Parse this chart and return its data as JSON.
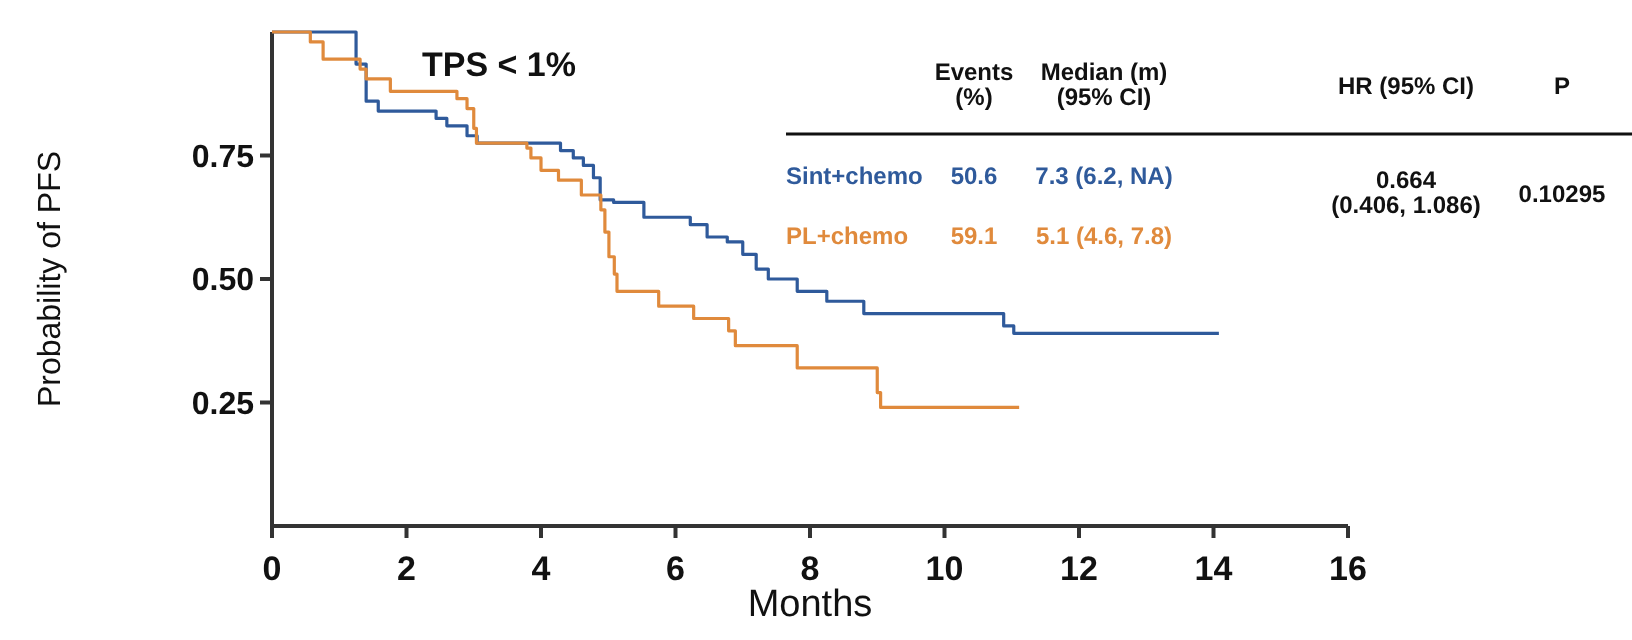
{
  "chart_data": {
    "type": "step",
    "title": "TPS < 1%",
    "xlabel": "Months",
    "ylabel": "Probability of PFS",
    "xlim": [
      0,
      16
    ],
    "xticks": [
      0,
      2,
      4,
      6,
      8,
      10,
      12,
      14,
      16
    ],
    "ylim": [
      0,
      1
    ],
    "yticks": [
      {
        "value": 0.25,
        "label": "0.25"
      },
      {
        "value": 0.5,
        "label": "0.50"
      },
      {
        "value": 0.75,
        "label": "0.75"
      }
    ],
    "legend": "top right",
    "line_style": "solid",
    "marker": "none",
    "grid": false,
    "series": [
      {
        "name": "Sint+chemo",
        "color": "#2f5a9b",
        "x": [
          0,
          1.25,
          1.4,
          1.58,
          2.44,
          2.6,
          2.9,
          3.05,
          4.29,
          4.48,
          4.63,
          4.78,
          4.88,
          5.08,
          5.53,
          6.22,
          6.47,
          6.77,
          7.0,
          7.2,
          7.38,
          7.81,
          8.25,
          8.8,
          10.88,
          11.03,
          14.08
        ],
        "values": [
          1,
          0.935,
          0.86,
          0.84,
          0.825,
          0.81,
          0.79,
          0.775,
          0.76,
          0.745,
          0.73,
          0.705,
          0.66,
          0.655,
          0.625,
          0.61,
          0.585,
          0.575,
          0.55,
          0.52,
          0.5,
          0.475,
          0.455,
          0.43,
          0.405,
          0.39,
          0.39
        ]
      },
      {
        "name": "PL+chemo",
        "color": "#e08a3c",
        "x": [
          0,
          0.57,
          0.76,
          1.31,
          1.4,
          1.76,
          2.75,
          2.9,
          3.0,
          3.04,
          3.79,
          3.85,
          4.0,
          4.26,
          4.6,
          4.89,
          4.95,
          5.01,
          5.09,
          5.13,
          5.75,
          6.27,
          6.79,
          6.89,
          7.81,
          9.0,
          9.05,
          11.11
        ],
        "values": [
          1,
          0.98,
          0.945,
          0.925,
          0.905,
          0.88,
          0.865,
          0.845,
          0.805,
          0.775,
          0.765,
          0.745,
          0.72,
          0.7,
          0.67,
          0.64,
          0.595,
          0.545,
          0.51,
          0.475,
          0.445,
          0.42,
          0.395,
          0.365,
          0.32,
          0.27,
          0.24,
          0.24
        ]
      }
    ],
    "annotations": [
      "Events\n(%)",
      "Median (m)\n(95% CI)",
      "HR (95% CI)",
      "P",
      "50.6",
      "7.3 (6.2, NA)",
      "59.1",
      "5.1 (4.6, 7.8)",
      "0.664\n(0.406, 1.086)",
      "0.10295"
    ]
  }
}
